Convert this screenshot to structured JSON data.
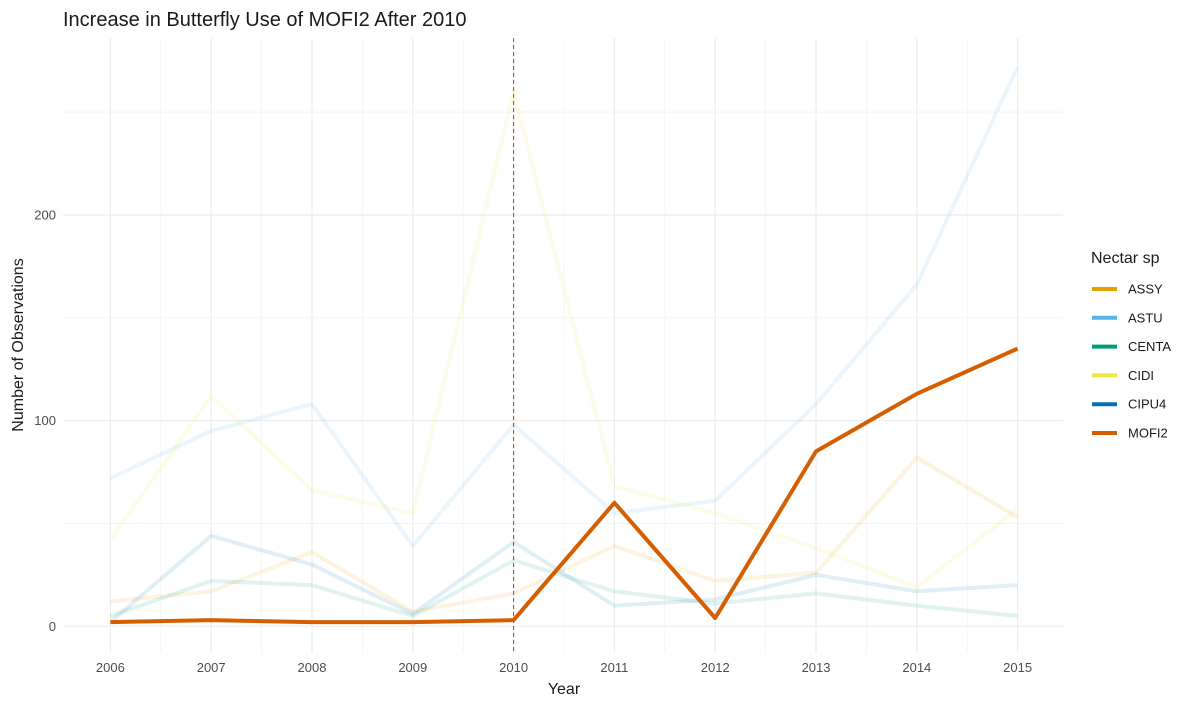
{
  "chart_data": {
    "type": "line",
    "title": "Increase in Butterfly Use of MOFI2 After 2010",
    "xlabel": "Year",
    "ylabel": "Number of Observations",
    "x": [
      2006,
      2007,
      2008,
      2009,
      2010,
      2011,
      2012,
      2013,
      2014,
      2015
    ],
    "xlim": [
      2005.53,
      2015.45
    ],
    "ylim": [
      -13,
      286
    ],
    "x_ticks": [
      "2006",
      "2007",
      "2008",
      "2009",
      "2010",
      "2011",
      "2012",
      "2013",
      "2014",
      "2015"
    ],
    "y_ticks": [
      "0",
      "100",
      "200"
    ],
    "grid": true,
    "reference_line": {
      "x": 2010,
      "color": "#d62728",
      "style": "dashed"
    },
    "legend": {
      "title": "Nectar sp",
      "position": "right"
    },
    "highlight_series": "MOFI2",
    "series": [
      {
        "name": "ASSY",
        "color": "#E69F00",
        "values": [
          12,
          17,
          36,
          7,
          16,
          39,
          22,
          26,
          82,
          53
        ]
      },
      {
        "name": "ASTU",
        "color": "#56B4E9",
        "values": [
          72,
          95,
          108,
          39,
          98,
          55,
          61,
          108,
          166,
          272
        ]
      },
      {
        "name": "CENTA",
        "color": "#009E73",
        "values": [
          5,
          22,
          20,
          5,
          32,
          17,
          11,
          16,
          10,
          5
        ]
      },
      {
        "name": "CIDI",
        "color": "#F0E442",
        "values": [
          42,
          112,
          66,
          55,
          260,
          68,
          55,
          38,
          19,
          57
        ]
      },
      {
        "name": "CIPU4",
        "color": "#0072B2",
        "values": [
          2,
          44,
          30,
          6,
          41,
          10,
          13,
          25,
          17,
          20
        ]
      },
      {
        "name": "MOFI2",
        "color": "#D55E00",
        "values": [
          2,
          3,
          2,
          2,
          3,
          60,
          4,
          85,
          113,
          135
        ]
      }
    ]
  }
}
